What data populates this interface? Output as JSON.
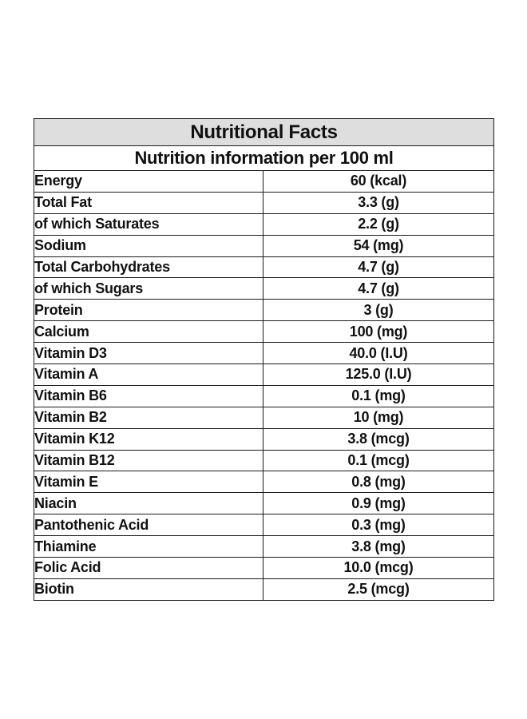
{
  "table": {
    "title": "Nutritional Facts",
    "subtitle": "Nutrition information per 100 ml",
    "rows": [
      {
        "name": "Energy",
        "value": "60 (kcal)"
      },
      {
        "name": "Total Fat",
        "value": "3.3 (g)"
      },
      {
        "name": "of which Saturates",
        "value": "2.2 (g)"
      },
      {
        "name": "Sodium",
        "value": "54 (mg)"
      },
      {
        "name": "Total Carbohydrates",
        "value": "4.7 (g)"
      },
      {
        "name": "of which Sugars",
        "value": "4.7 (g)"
      },
      {
        "name": "Protein",
        "value": "3 (g)"
      },
      {
        "name": "Calcium",
        "value": "100 (mg)"
      },
      {
        "name": "Vitamin D3",
        "value": "40.0 (I.U)"
      },
      {
        "name": "Vitamin A",
        "value": "125.0 (I.U)"
      },
      {
        "name": "Vitamin B6",
        "value": "0.1 (mg)"
      },
      {
        "name": "Vitamin B2",
        "value": "10 (mg)"
      },
      {
        "name": "Vitamin K12",
        "value": "3.8 (mcg)"
      },
      {
        "name": "Vitamin B12",
        "value": "0.1 (mcg)"
      },
      {
        "name": "Vitamin E",
        "value": "0.8 (mg)"
      },
      {
        "name": "Niacin",
        "value": "0.9 (mg)"
      },
      {
        "name": "Pantothenic Acid",
        "value": "0.3 (mg)"
      },
      {
        "name": "Thiamine",
        "value": "3.8 (mg)"
      },
      {
        "name": "Folic Acid",
        "value": "10.0 (mcg)"
      },
      {
        "name": "Biotin",
        "value": "2.5 (mcg)"
      }
    ]
  },
  "colors": {
    "title_background": "#dedede",
    "border": "#1a1a1a",
    "text": "#111111"
  }
}
